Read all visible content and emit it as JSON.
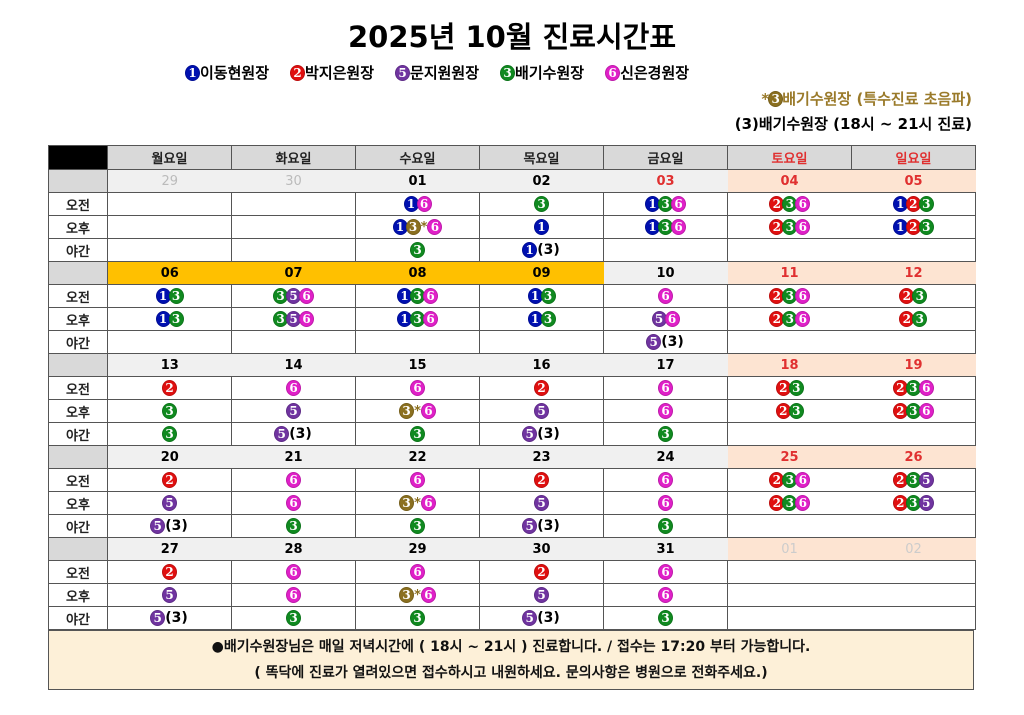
{
  "title": "2025년 10월 진료시간표",
  "colors": {
    "1": "#0010b0",
    "2": "#e01010",
    "3": "#108a20",
    "5": "#7034a0",
    "6": "#e020c8",
    "3s": "#8b7020"
  },
  "legend": [
    {
      "num": "1",
      "name": "이동현원장"
    },
    {
      "num": "2",
      "name": "박지은원장"
    },
    {
      "num": "5",
      "name": "문지원원장"
    },
    {
      "num": "3",
      "name": "배기수원장"
    },
    {
      "num": "6",
      "name": "신은경원장"
    }
  ],
  "special_note": {
    "prefix": "*",
    "num": "3",
    "text": "배기수원장 (특수진료 초음파)"
  },
  "evening_note": "(3)배기수원장 (18시 ~ 21시 진료)",
  "weekdays": [
    "월요일",
    "화요일",
    "수요일",
    "목요일",
    "금요일",
    "토요일",
    "일요일"
  ],
  "weekday_red": [
    false,
    false,
    false,
    false,
    false,
    true,
    true
  ],
  "weeks": [
    {
      "dates": [
        {
          "d": "29",
          "s": "muted"
        },
        {
          "d": "30",
          "s": "muted"
        },
        {
          "d": "01",
          "s": "normal"
        },
        {
          "d": "02",
          "s": "normal"
        },
        {
          "d": "03",
          "s": "red"
        },
        {
          "d": "04",
          "s": "weekend"
        },
        {
          "d": "05",
          "s": "weekend"
        }
      ],
      "rows": [
        {
          "label": "오전",
          "cells": [
            [],
            [],
            [
              "1",
              "6"
            ],
            [
              "3"
            ],
            [
              "1",
              "3",
              "6"
            ],
            [
              "2",
              "3",
              "6"
            ],
            [
              "1",
              "2",
              "3"
            ]
          ]
        },
        {
          "label": "오후",
          "cells": [
            [],
            [],
            [
              "1",
              "3s",
              "6"
            ],
            [
              "1"
            ],
            [
              "1",
              "3",
              "6"
            ],
            [
              "2",
              "3",
              "6"
            ],
            [
              "1",
              "2",
              "3"
            ]
          ]
        },
        {
          "label": "야간",
          "cells": [
            [],
            [],
            [
              "3"
            ],
            [
              "1",
              "(3)"
            ],
            [],
            [],
            []
          ]
        }
      ]
    },
    {
      "dates": [
        {
          "d": "06",
          "s": "holiday"
        },
        {
          "d": "07",
          "s": "holiday"
        },
        {
          "d": "08",
          "s": "holiday"
        },
        {
          "d": "09",
          "s": "holiday"
        },
        {
          "d": "10",
          "s": "normal"
        },
        {
          "d": "11",
          "s": "weekend"
        },
        {
          "d": "12",
          "s": "weekend"
        }
      ],
      "rows": [
        {
          "label": "오전",
          "cells": [
            [
              "1",
              "3"
            ],
            [
              "3",
              "5",
              "6"
            ],
            [
              "1",
              "3",
              "6"
            ],
            [
              "1",
              "3"
            ],
            [
              "6"
            ],
            [
              "2",
              "3",
              "6"
            ],
            [
              "2",
              "3"
            ]
          ]
        },
        {
          "label": "오후",
          "cells": [
            [
              "1",
              "3"
            ],
            [
              "3",
              "5",
              "6"
            ],
            [
              "1",
              "3",
              "6"
            ],
            [
              "1",
              "3"
            ],
            [
              "5",
              "6"
            ],
            [
              "2",
              "3",
              "6"
            ],
            [
              "2",
              "3"
            ]
          ]
        },
        {
          "label": "야간",
          "cells": [
            [],
            [],
            [],
            [],
            [
              "5",
              "(3)"
            ],
            [],
            []
          ]
        }
      ]
    },
    {
      "dates": [
        {
          "d": "13",
          "s": "normal"
        },
        {
          "d": "14",
          "s": "normal"
        },
        {
          "d": "15",
          "s": "normal"
        },
        {
          "d": "16",
          "s": "normal"
        },
        {
          "d": "17",
          "s": "normal"
        },
        {
          "d": "18",
          "s": "weekend"
        },
        {
          "d": "19",
          "s": "weekend"
        }
      ],
      "rows": [
        {
          "label": "오전",
          "cells": [
            [
              "2"
            ],
            [
              "6"
            ],
            [
              "6"
            ],
            [
              "2"
            ],
            [
              "6"
            ],
            [
              "2",
              "3"
            ],
            [
              "2",
              "3",
              "6"
            ]
          ]
        },
        {
          "label": "오후",
          "cells": [
            [
              "3"
            ],
            [
              "5"
            ],
            [
              "3s",
              "6"
            ],
            [
              "5"
            ],
            [
              "6"
            ],
            [
              "2",
              "3"
            ],
            [
              "2",
              "3",
              "6"
            ]
          ]
        },
        {
          "label": "야간",
          "cells": [
            [
              "3"
            ],
            [
              "5",
              "(3)"
            ],
            [
              "3"
            ],
            [
              "5",
              "(3)"
            ],
            [
              "3"
            ],
            [],
            []
          ]
        }
      ]
    },
    {
      "dates": [
        {
          "d": "20",
          "s": "normal"
        },
        {
          "d": "21",
          "s": "normal"
        },
        {
          "d": "22",
          "s": "normal"
        },
        {
          "d": "23",
          "s": "normal"
        },
        {
          "d": "24",
          "s": "normal"
        },
        {
          "d": "25",
          "s": "weekend"
        },
        {
          "d": "26",
          "s": "weekend"
        }
      ],
      "rows": [
        {
          "label": "오전",
          "cells": [
            [
              "2"
            ],
            [
              "6"
            ],
            [
              "6"
            ],
            [
              "2"
            ],
            [
              "6"
            ],
            [
              "2",
              "3",
              "6"
            ],
            [
              "2",
              "3",
              "5"
            ]
          ]
        },
        {
          "label": "오후",
          "cells": [
            [
              "5"
            ],
            [
              "6"
            ],
            [
              "3s",
              "6"
            ],
            [
              "5"
            ],
            [
              "6"
            ],
            [
              "2",
              "3",
              "6"
            ],
            [
              "2",
              "3",
              "5"
            ]
          ]
        },
        {
          "label": "야간",
          "cells": [
            [
              "5",
              "(3)"
            ],
            [
              "3"
            ],
            [
              "3"
            ],
            [
              "5",
              "(3)"
            ],
            [
              "3"
            ],
            [],
            []
          ]
        }
      ]
    },
    {
      "dates": [
        {
          "d": "27",
          "s": "normal"
        },
        {
          "d": "28",
          "s": "normal"
        },
        {
          "d": "29",
          "s": "normal"
        },
        {
          "d": "30",
          "s": "normal"
        },
        {
          "d": "31",
          "s": "normal"
        },
        {
          "d": "01",
          "s": "weekend-muted"
        },
        {
          "d": "02",
          "s": "weekend-muted"
        }
      ],
      "rows": [
        {
          "label": "오전",
          "cells": [
            [
              "2"
            ],
            [
              "6"
            ],
            [
              "6"
            ],
            [
              "2"
            ],
            [
              "6"
            ],
            [],
            []
          ]
        },
        {
          "label": "오후",
          "cells": [
            [
              "5"
            ],
            [
              "6"
            ],
            [
              "3s",
              "6"
            ],
            [
              "5"
            ],
            [
              "6"
            ],
            [],
            []
          ]
        },
        {
          "label": "야간",
          "cells": [
            [
              "5",
              "(3)"
            ],
            [
              "3"
            ],
            [
              "3"
            ],
            [
              "5",
              "(3)"
            ],
            [
              "3"
            ],
            [],
            []
          ]
        }
      ]
    }
  ],
  "footer": {
    "line1": "●배기수원장님은 매일 저녁시간에 ( 18시 ~ 21시 ) 진료합니다.   /  접수는 17:20 부터 가능합니다.",
    "line2": "( 똑닥에 진료가 열려있으면 접수하시고 내원하세요.  문의사항은 병원으로 전화주세요.)"
  }
}
